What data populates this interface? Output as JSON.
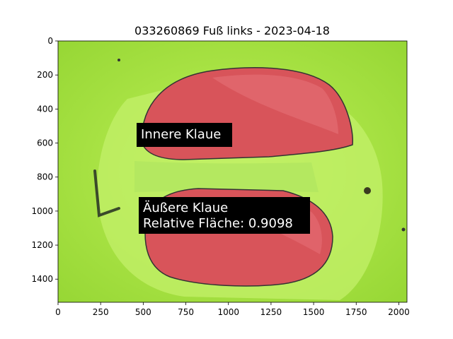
{
  "plot": {
    "title": "033260869 Fuß links - 2023-04-18",
    "image_extent": {
      "x": [
        0,
        2048
      ],
      "y": [
        1536,
        0
      ]
    },
    "x_ticks": [
      0,
      250,
      500,
      750,
      1000,
      1250,
      1500,
      1750,
      2000
    ],
    "y_ticks": [
      0,
      200,
      400,
      600,
      800,
      1000,
      1200,
      1400
    ],
    "colors": {
      "background": "#ffffff",
      "mat": "#a9e43f",
      "claw_fill": "#d8545a",
      "label_box": "#000000"
    }
  },
  "annotations": {
    "inner_claw": "Innere Klaue",
    "outer_claw": "Äußere Klaue",
    "relative_area": "Relative Fläche: 0.9098"
  }
}
